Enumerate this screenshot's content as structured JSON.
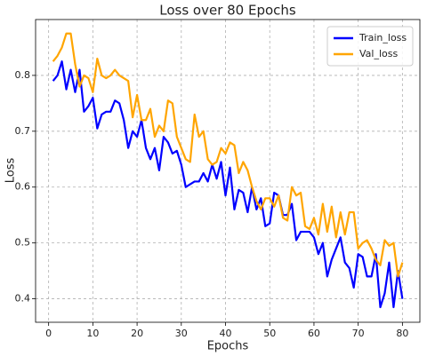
{
  "chart_data": {
    "type": "line",
    "title": "Loss over 80 Epochs",
    "xlabel": "Epochs",
    "ylabel": "Loss",
    "x": [
      1,
      2,
      3,
      4,
      5,
      6,
      7,
      8,
      9,
      10,
      11,
      12,
      13,
      14,
      15,
      16,
      17,
      18,
      19,
      20,
      21,
      22,
      23,
      24,
      25,
      26,
      27,
      28,
      29,
      30,
      31,
      32,
      33,
      34,
      35,
      36,
      37,
      38,
      39,
      40,
      41,
      42,
      43,
      44,
      45,
      46,
      47,
      48,
      49,
      50,
      51,
      52,
      53,
      54,
      55,
      56,
      57,
      58,
      59,
      60,
      61,
      62,
      63,
      64,
      65,
      66,
      67,
      68,
      69,
      70,
      71,
      72,
      73,
      74,
      75,
      76,
      77,
      78,
      79,
      80
    ],
    "series": [
      {
        "name": "Train_loss",
        "color": "#0000ff",
        "values": [
          0.79,
          0.8,
          0.825,
          0.775,
          0.81,
          0.77,
          0.81,
          0.735,
          0.745,
          0.76,
          0.705,
          0.73,
          0.735,
          0.735,
          0.755,
          0.75,
          0.72,
          0.67,
          0.7,
          0.69,
          0.72,
          0.67,
          0.65,
          0.67,
          0.63,
          0.69,
          0.68,
          0.66,
          0.665,
          0.64,
          0.6,
          0.605,
          0.61,
          0.61,
          0.625,
          0.61,
          0.64,
          0.615,
          0.645,
          0.585,
          0.635,
          0.56,
          0.595,
          0.59,
          0.555,
          0.6,
          0.56,
          0.58,
          0.53,
          0.535,
          0.59,
          0.585,
          0.55,
          0.55,
          0.57,
          0.505,
          0.52,
          0.52,
          0.52,
          0.51,
          0.48,
          0.5,
          0.44,
          0.47,
          0.49,
          0.51,
          0.465,
          0.455,
          0.42,
          0.48,
          0.475,
          0.44,
          0.44,
          0.48,
          0.385,
          0.41,
          0.465,
          0.385,
          0.45,
          0.4
        ]
      },
      {
        "name": "Val_loss",
        "color": "#ffa500",
        "values": [
          0.825,
          0.835,
          0.85,
          0.875,
          0.875,
          0.82,
          0.78,
          0.8,
          0.795,
          0.77,
          0.83,
          0.8,
          0.795,
          0.8,
          0.81,
          0.8,
          0.795,
          0.79,
          0.725,
          0.765,
          0.72,
          0.72,
          0.74,
          0.69,
          0.71,
          0.7,
          0.755,
          0.75,
          0.69,
          0.67,
          0.65,
          0.645,
          0.73,
          0.69,
          0.7,
          0.65,
          0.64,
          0.645,
          0.67,
          0.66,
          0.68,
          0.675,
          0.625,
          0.645,
          0.63,
          0.6,
          0.575,
          0.56,
          0.58,
          0.58,
          0.565,
          0.585,
          0.545,
          0.54,
          0.6,
          0.585,
          0.59,
          0.53,
          0.525,
          0.545,
          0.515,
          0.57,
          0.52,
          0.565,
          0.51,
          0.555,
          0.515,
          0.555,
          0.555,
          0.49,
          0.5,
          0.505,
          0.49,
          0.47,
          0.46,
          0.505,
          0.495,
          0.5,
          0.44,
          0.465
        ]
      }
    ],
    "xlim": [
      -2.95,
      83.95
    ],
    "ylim": [
      0.358,
      0.9
    ],
    "xticks": [
      0,
      10,
      20,
      30,
      40,
      50,
      60,
      70,
      80
    ],
    "yticks": [
      0.4,
      0.5,
      0.6,
      0.7,
      0.8
    ],
    "grid": true,
    "legend": "upper right"
  }
}
